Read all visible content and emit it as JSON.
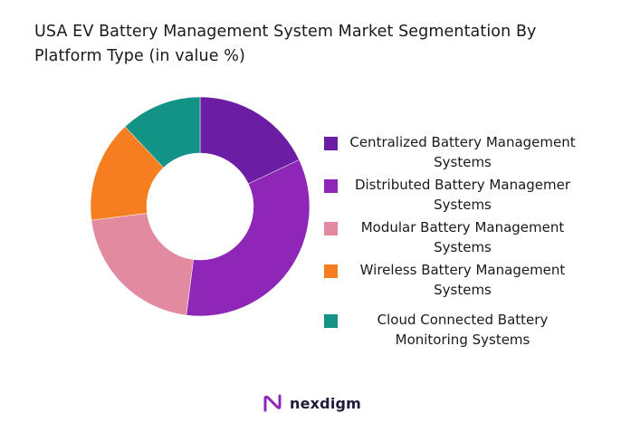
{
  "chart_data": {
    "type": "pie",
    "donut": true,
    "title": "USA EV Battery Management System Market Segmentation By Platform Type (in value %)",
    "series": [
      {
        "name": "Centralized Battery Management Systems",
        "value": 18,
        "color": "#6b1ea3"
      },
      {
        "name": "Distributed Battery Managemer Systems",
        "value": 34,
        "color": "#8e27b8"
      },
      {
        "name": "Modular Battery Management Systems",
        "value": 21,
        "color": "#e28aa0"
      },
      {
        "name": "Wireless Battery Management Systems",
        "value": 15,
        "color": "#f57f1f"
      },
      {
        "name": "Cloud Connected Battery Monitoring Systems",
        "value": 12,
        "color": "#139286"
      }
    ],
    "legend_position": "right"
  },
  "brand": {
    "name": "nexdigm",
    "logo_color": "#8e27b8"
  }
}
